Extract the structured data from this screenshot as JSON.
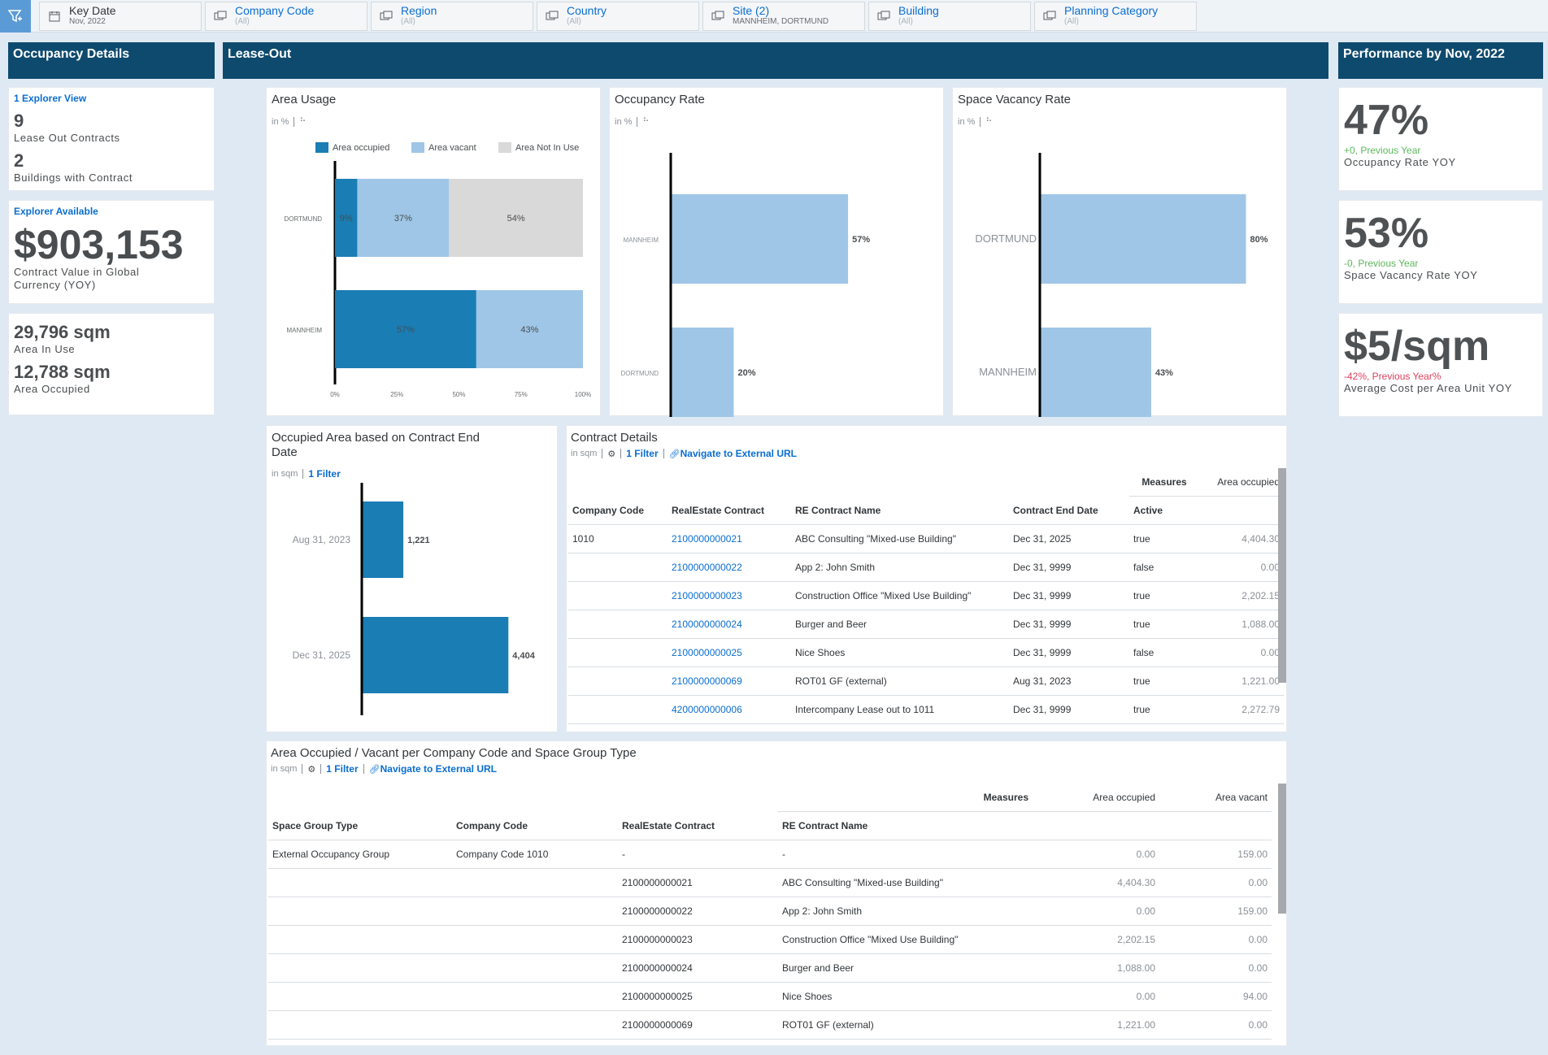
{
  "filters": [
    {
      "label": "Key Date",
      "value": "Nov, 2022",
      "type": "calendar"
    },
    {
      "label": "Company Code",
      "value": "(All)",
      "type": "member"
    },
    {
      "label": "Region",
      "value": "(All)",
      "type": "member"
    },
    {
      "label": "Country",
      "value": "(All)",
      "type": "member"
    },
    {
      "label": "Site (2)",
      "value": "MANNHEIM, DORTMUND",
      "type": "member"
    },
    {
      "label": "Building",
      "value": "(All)",
      "type": "member"
    },
    {
      "label": "Planning Category",
      "value": "(All)",
      "type": "member"
    }
  ],
  "headers": {
    "occupancy": "Occupancy Details",
    "leaseout": "Lease-Out",
    "performance": "Performance by Nov, 2022"
  },
  "left": {
    "explorer_view": "1 Explorer View",
    "contracts_count": "9",
    "contracts_label": "Lease Out Contracts",
    "buildings_count": "2",
    "buildings_label": "Buildings with Contract",
    "explorer_available": "Explorer Available",
    "contract_value": "$903,153",
    "contract_value_label": "Contract Value in Global Currency (YOY)",
    "area_in_use": "29,796 sqm",
    "area_in_use_label": "Area In Use",
    "area_occupied": "12,788 sqm",
    "area_occupied_label": "Area Occupied"
  },
  "performance": {
    "occ_rate": "47%",
    "occ_delta": "+0, Previous Year",
    "occ_label": "Occupancy Rate YOY",
    "vac_rate": "53%",
    "vac_delta": "-0, Previous Year",
    "vac_label": "Space Vacancy Rate YOY",
    "cost": "$5/sqm",
    "cost_delta": "-42%, Previous Year%",
    "cost_label": "Average Cost per Area Unit YOY"
  },
  "colors": {
    "occupied": "#1a7db4",
    "vacant": "#9fc6e7",
    "not_in_use": "#d9d9d9",
    "header": "#0e4a6e"
  },
  "chart_data": [
    {
      "type": "bar",
      "orientation": "horizontal-stacked",
      "title": "Area Usage",
      "unit": "in %",
      "categories": [
        "DORTMUND",
        "MANNHEIM"
      ],
      "series": [
        {
          "name": "Area occupied",
          "values": [
            9,
            57
          ]
        },
        {
          "name": "Area vacant",
          "values": [
            37,
            43
          ]
        },
        {
          "name": "Area Not In Use",
          "values": [
            54,
            0
          ]
        }
      ],
      "data_labels": [
        [
          "9%",
          "37%",
          "54%"
        ],
        [
          "57%",
          "43%",
          ""
        ]
      ],
      "xticks": [
        "0%",
        "25%",
        "50%",
        "75%",
        "100%"
      ],
      "xlim": [
        0,
        100
      ],
      "legend": "top"
    },
    {
      "type": "bar",
      "orientation": "horizontal",
      "title": "Occupancy Rate",
      "unit": "in %",
      "categories": [
        "MANNHEIM",
        "DORTMUND"
      ],
      "values": [
        57,
        20
      ],
      "labels": [
        "57%",
        "20%"
      ]
    },
    {
      "type": "bar",
      "orientation": "horizontal",
      "title": "Space Vacancy Rate",
      "unit": "in %",
      "categories": [
        "DORTMUND",
        "MANNHEIM"
      ],
      "values": [
        80,
        43
      ],
      "labels": [
        "80%",
        "43%"
      ]
    },
    {
      "type": "bar",
      "orientation": "horizontal",
      "title": "Occupied Area based on Contract End Date",
      "unit": "in sqm",
      "filter": "1 Filter",
      "categories": [
        "Aug 31, 2023",
        "Dec 31, 2025"
      ],
      "values": [
        1221,
        4404
      ],
      "labels": [
        "1,221",
        "4,404"
      ]
    }
  ],
  "contract_table": {
    "title": "Contract Details",
    "unit": "in sqm",
    "filter": "1 Filter",
    "nav": "Navigate to External URL",
    "measures_label": "Measures",
    "measure": "Area occupied",
    "columns": [
      "Company Code",
      "RealEstate Contract",
      "RE Contract Name",
      "Contract End Date",
      "Active"
    ],
    "rows": [
      [
        "1010",
        "2100000000021",
        "ABC Consulting \"Mixed-use Building\"",
        "Dec 31, 2025",
        "true",
        "4,404.30"
      ],
      [
        "",
        "2100000000022",
        "App 2: John Smith",
        "Dec 31, 9999",
        "false",
        "0.00"
      ],
      [
        "",
        "2100000000023",
        "Construction Office \"Mixed Use Building\"",
        "Dec 31, 9999",
        "true",
        "2,202.15"
      ],
      [
        "",
        "2100000000024",
        "Burger and Beer",
        "Dec 31, 9999",
        "true",
        "1,088.00"
      ],
      [
        "",
        "2100000000025",
        "Nice Shoes",
        "Dec 31, 9999",
        "false",
        "0.00"
      ],
      [
        "",
        "2100000000069",
        "ROT01 GF (external)",
        "Aug 31, 2023",
        "true",
        "1,221.00"
      ],
      [
        "",
        "4200000000006",
        "Intercompany Lease out to 1011",
        "Dec 31, 9999",
        "true",
        "2,272.79"
      ]
    ]
  },
  "space_table": {
    "title": "Area Occupied / Vacant per Company Code and Space Group Type",
    "unit": "in sqm",
    "filter": "1 Filter",
    "nav": "Navigate to External URL",
    "measures_label": "Measures",
    "measures": [
      "Area occupied",
      "Area vacant"
    ],
    "columns": [
      "Space Group Type",
      "Company Code",
      "RealEstate Contract",
      "RE Contract Name"
    ],
    "rows": [
      [
        "External Occupancy Group",
        "Company Code 1010",
        "-",
        "-",
        "0.00",
        "159.00"
      ],
      [
        "",
        "",
        "2100000000021",
        "ABC Consulting \"Mixed-use Building\"",
        "4,404.30",
        "0.00"
      ],
      [
        "",
        "",
        "2100000000022",
        "App 2: John Smith",
        "0.00",
        "159.00"
      ],
      [
        "",
        "",
        "2100000000023",
        "Construction Office \"Mixed Use Building\"",
        "2,202.15",
        "0.00"
      ],
      [
        "",
        "",
        "2100000000024",
        "Burger and Beer",
        "1,088.00",
        "0.00"
      ],
      [
        "",
        "",
        "2100000000025",
        "Nice Shoes",
        "0.00",
        "94.00"
      ],
      [
        "",
        "",
        "2100000000069",
        "ROT01 GF (external)",
        "1,221.00",
        "0.00"
      ]
    ]
  }
}
